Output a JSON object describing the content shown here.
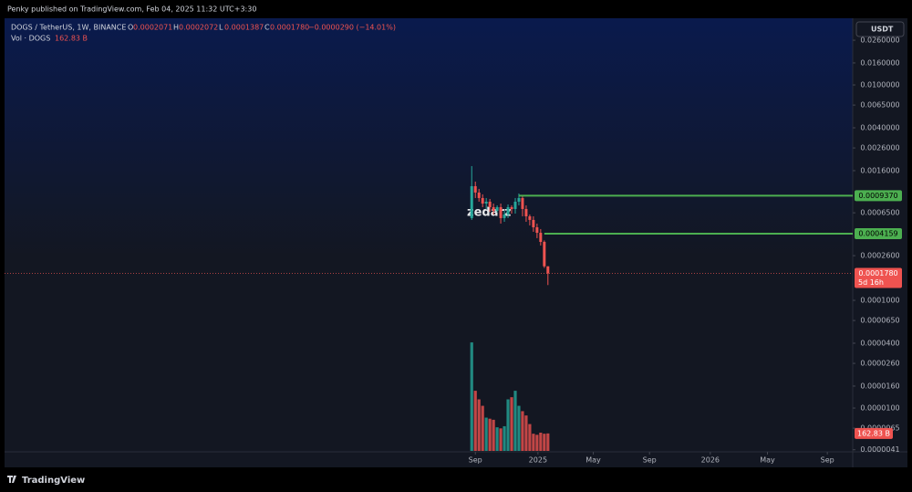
{
  "header": {
    "publisher": "Penky published on TradingView.com, Feb 04, 2025 11:32 UTC+3:30"
  },
  "footer": {
    "brand": "TradingView"
  },
  "currency_button": "USDT",
  "watermark": "zedarz",
  "chart_data": {
    "type": "candlestick",
    "title": "DOGS / TetherUS, 1W, BINANCE",
    "ohlc_keys": [
      "O",
      "H",
      "L",
      "C"
    ],
    "ohlc_labels": [
      "0.0002071",
      "0.0002072",
      "0.0001387",
      "0.0001780"
    ],
    "change": "−0.0000290 (−14.01%)",
    "up_color": "#26a69a",
    "down_color": "#ef5350",
    "open": [
      0.00058,
      0.001148,
      0.001002,
      0.000891,
      0.000792,
      0.000824,
      0.000733,
      0.000678,
      0.000733,
      0.00058,
      0.000627,
      0.000733,
      0.000705,
      0.000824,
      0.000891,
      0.000705,
      0.000603,
      0.000558,
      0.000477,
      0.000424,
      0.000349,
      0.0002071
    ],
    "high": [
      0.001764,
      0.001266,
      0.001083,
      0.000964,
      0.000891,
      0.000874,
      0.000792,
      0.000762,
      0.000792,
      0.000678,
      0.000777,
      0.000762,
      0.000891,
      0.000982,
      0.000937,
      0.000762,
      0.000627,
      0.000603,
      0.000516,
      0.000459,
      0.00036,
      0.0002072
    ],
    "low": [
      0.000558,
      0.000891,
      0.000824,
      0.000733,
      0.000705,
      0.000665,
      0.000627,
      0.000652,
      0.000516,
      0.000536,
      0.00058,
      0.000639,
      0.000639,
      0.000762,
      0.000603,
      0.000536,
      0.000496,
      0.000433,
      0.000378,
      0.000323,
      0.0002,
      0.0001387
    ],
    "close": [
      0.001148,
      0.001002,
      0.000891,
      0.000792,
      0.000824,
      0.000733,
      0.000678,
      0.000733,
      0.00058,
      0.000627,
      0.000733,
      0.000705,
      0.000824,
      0.000891,
      0.000705,
      0.000603,
      0.000558,
      0.000477,
      0.000424,
      0.000349,
      0.0002071,
      0.000178
    ],
    "volume": {
      "name": "Vol · DOGS",
      "last_label": "162.83 B",
      "values": [
        1010,
        560,
        480,
        420,
        310,
        300,
        290,
        220,
        210,
        230,
        480,
        500,
        560,
        420,
        370,
        330,
        250,
        160,
        150,
        170,
        160,
        162.83
      ],
      "ylim": [
        0,
        1300
      ]
    },
    "log_scale": true,
    "xlim": [
      -128.75,
      105
    ],
    "xticks": [
      {
        "value": 1,
        "label": "Sep"
      },
      {
        "value": 18.25,
        "label": "2025"
      },
      {
        "value": 33.5,
        "label": "May"
      },
      {
        "value": 49,
        "label": "Sep"
      },
      {
        "value": 65.75,
        "label": "2026"
      },
      {
        "value": 81.5,
        "label": "May"
      },
      {
        "value": 98,
        "label": "Sep"
      }
    ],
    "ylim": [
      4e-06,
      0.04
    ],
    "yticks": [
      {
        "value": 0.026,
        "label": "0.0260000"
      },
      {
        "value": 0.016,
        "label": "0.0160000"
      },
      {
        "value": 0.01,
        "label": "0.0100000"
      },
      {
        "value": 0.0065,
        "label": "0.0065000"
      },
      {
        "value": 0.004,
        "label": "0.0040000"
      },
      {
        "value": 0.0026,
        "label": "0.0026000"
      },
      {
        "value": 0.0016,
        "label": "0.0016000"
      },
      {
        "value": 0.00065,
        "label": "0.0006500"
      },
      {
        "value": 0.00026,
        "label": "0.0002600"
      },
      {
        "value": 0.0001,
        "label": "0.0001000"
      },
      {
        "value": 6.5e-05,
        "label": "0.0000650"
      },
      {
        "value": 4e-05,
        "label": "0.0000400"
      },
      {
        "value": 2.6e-05,
        "label": "0.0000260"
      },
      {
        "value": 1.6e-05,
        "label": "0.0000160"
      },
      {
        "value": 1e-05,
        "label": "0.0000100"
      },
      {
        "value": 6.5e-06,
        "label": "0.0000065"
      },
      {
        "value": 4.1e-06,
        "label": "0.0000041"
      }
    ],
    "levels": [
      {
        "value": 0.000937,
        "label": "0.0009370",
        "from": 13,
        "color": "#4caf50"
      },
      {
        "value": 0.0004159,
        "label": "0.0004159",
        "from": 20,
        "color": "#4caf50"
      }
    ],
    "price_line": {
      "value": 0.000178,
      "label": "0.0001780",
      "countdown": "5d 16h"
    }
  }
}
